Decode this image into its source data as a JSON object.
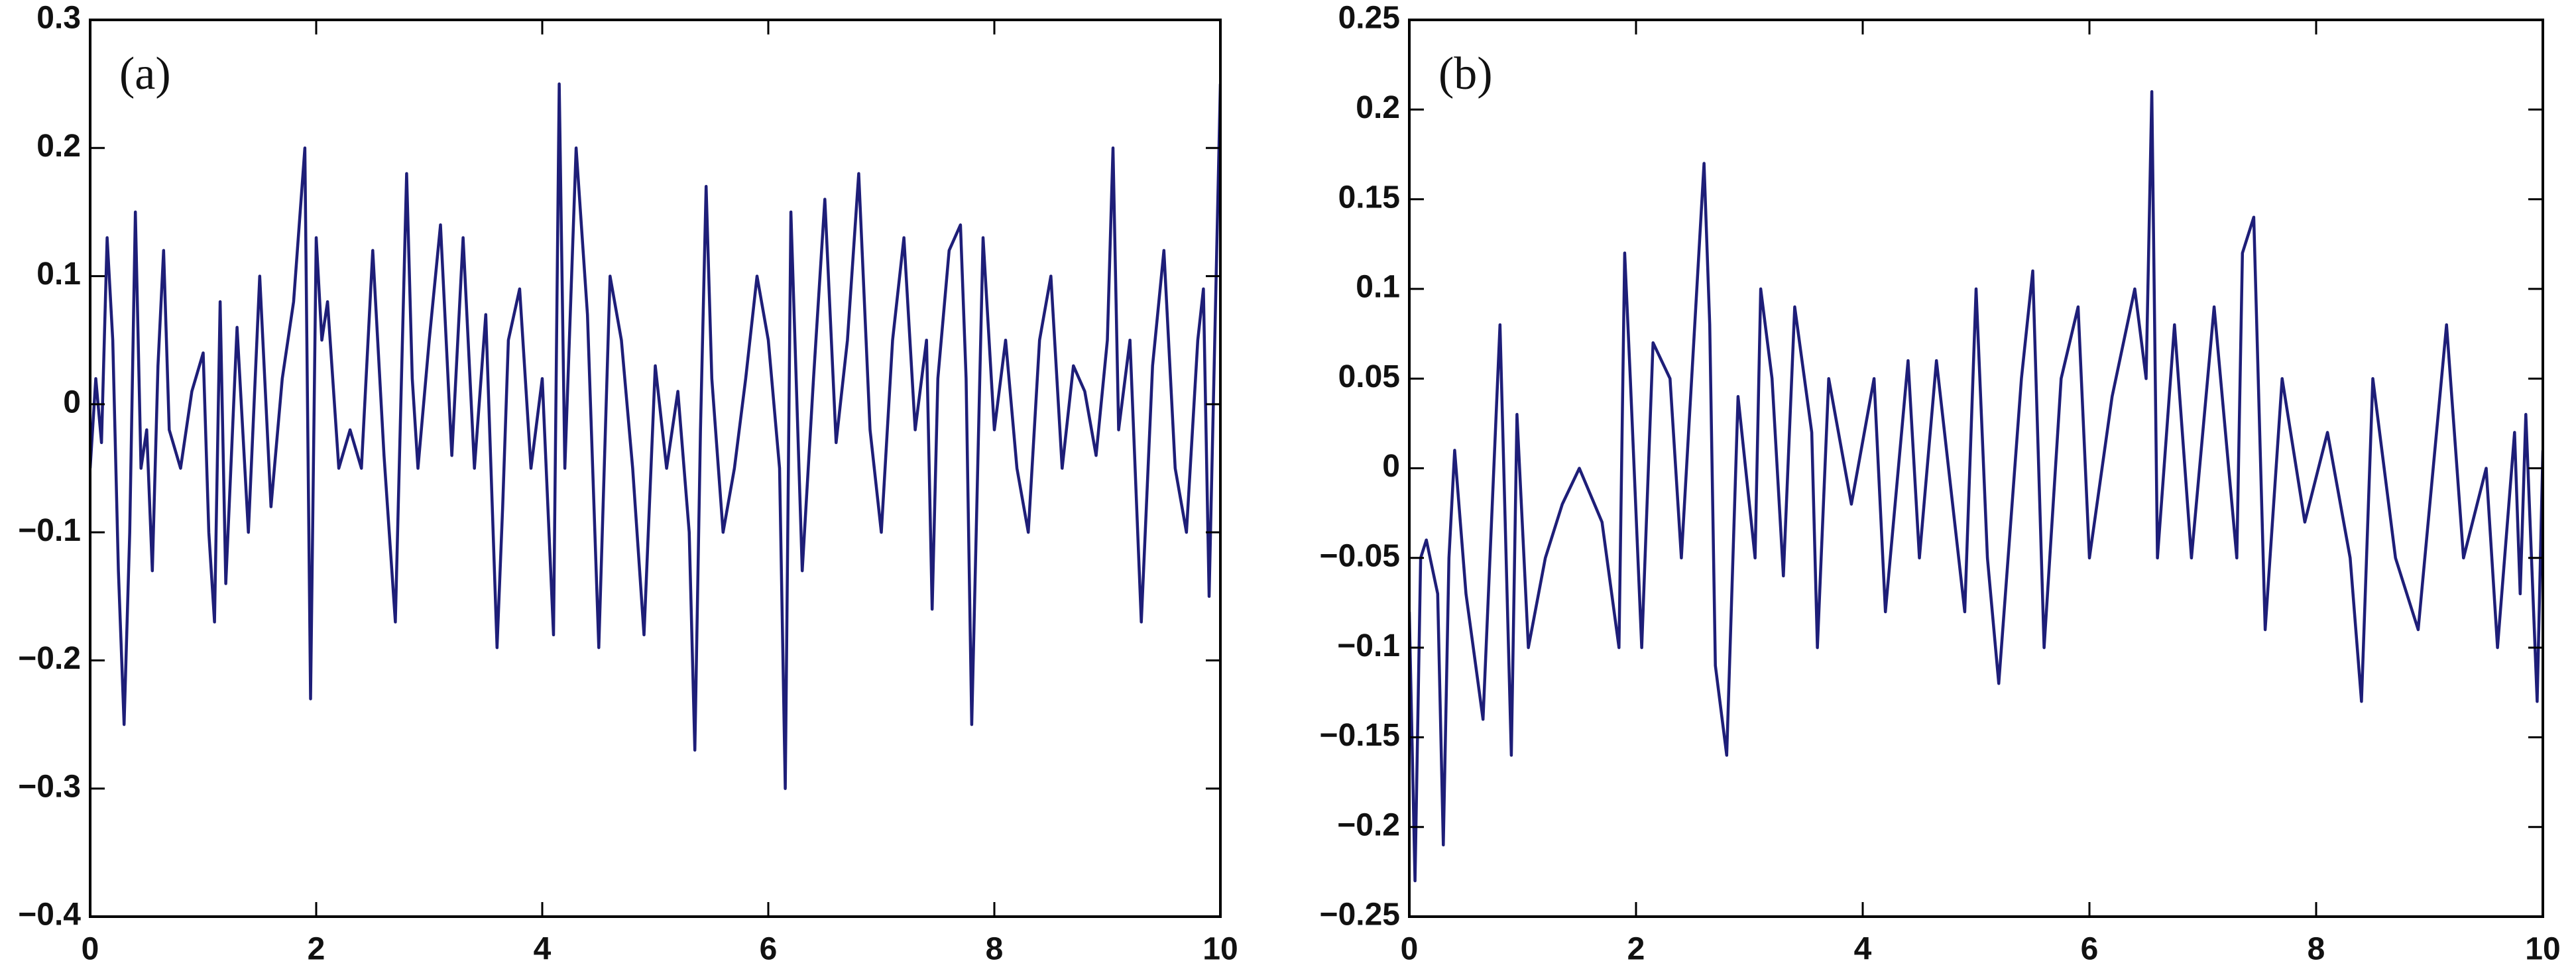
{
  "chart_data": [
    {
      "type": "line",
      "annotation": "(a)",
      "color": "#1e1e78",
      "xlim": [
        0,
        10
      ],
      "xticks": [
        0,
        2,
        4,
        6,
        8,
        10
      ],
      "ylim": [
        -0.4,
        0.3
      ],
      "yticks": [
        0.3,
        0.2,
        0.1,
        0,
        {
          "value": -0.1,
          "label": "−0.1"
        },
        {
          "value": -0.2,
          "label": "−0.2"
        },
        {
          "value": -0.3,
          "label": "−0.3"
        },
        {
          "value": -0.4,
          "label": "−0.4"
        }
      ],
      "x": [
        0,
        0.05,
        0.1,
        0.15,
        0.2,
        0.25,
        0.3,
        0.35,
        0.4,
        0.45,
        0.5,
        0.55,
        0.6,
        0.65,
        0.7,
        0.8,
        0.9,
        1.0,
        1.05,
        1.1,
        1.15,
        1.2,
        1.3,
        1.4,
        1.5,
        1.6,
        1.7,
        1.8,
        1.9,
        1.95,
        2.0,
        2.05,
        2.1,
        2.2,
        2.3,
        2.4,
        2.5,
        2.6,
        2.7,
        2.8,
        2.85,
        2.9,
        3.0,
        3.1,
        3.2,
        3.3,
        3.4,
        3.5,
        3.6,
        3.65,
        3.7,
        3.8,
        3.9,
        4.0,
        4.1,
        4.15,
        4.2,
        4.3,
        4.4,
        4.5,
        4.6,
        4.7,
        4.8,
        4.9,
        5.0,
        5.1,
        5.2,
        5.3,
        5.35,
        5.4,
        5.45,
        5.5,
        5.6,
        5.7,
        5.8,
        5.9,
        6.0,
        6.1,
        6.15,
        6.2,
        6.3,
        6.4,
        6.5,
        6.6,
        6.7,
        6.8,
        6.9,
        7.0,
        7.1,
        7.2,
        7.3,
        7.4,
        7.45,
        7.5,
        7.6,
        7.7,
        7.75,
        7.8,
        7.9,
        8.0,
        8.1,
        8.2,
        8.3,
        8.4,
        8.5,
        8.6,
        8.7,
        8.8,
        8.9,
        9.0,
        9.05,
        9.1,
        9.2,
        9.3,
        9.4,
        9.5,
        9.6,
        9.7,
        9.8,
        9.85,
        9.9,
        9.95,
        10
      ],
      "values": [
        -0.05,
        0.02,
        -0.03,
        0.13,
        0.05,
        -0.13,
        -0.25,
        -0.1,
        0.15,
        -0.05,
        -0.02,
        -0.13,
        0.03,
        0.12,
        -0.02,
        -0.05,
        0.01,
        0.04,
        -0.1,
        -0.17,
        0.08,
        -0.14,
        0.06,
        -0.1,
        0.1,
        -0.08,
        0.02,
        0.08,
        0.2,
        -0.23,
        0.13,
        0.05,
        0.08,
        -0.05,
        -0.02,
        -0.05,
        0.12,
        -0.04,
        -0.17,
        0.18,
        0.02,
        -0.05,
        0.05,
        0.14,
        -0.04,
        0.13,
        -0.05,
        0.07,
        -0.19,
        -0.08,
        0.05,
        0.09,
        -0.05,
        0.02,
        -0.18,
        0.25,
        -0.05,
        0.2,
        0.07,
        -0.19,
        0.1,
        0.05,
        -0.05,
        -0.18,
        0.03,
        -0.05,
        0.01,
        -0.1,
        -0.27,
        -0.02,
        0.17,
        0.02,
        -0.1,
        -0.05,
        0.02,
        0.1,
        0.05,
        -0.05,
        -0.3,
        0.15,
        -0.13,
        0.02,
        0.16,
        -0.03,
        0.05,
        0.18,
        -0.02,
        -0.1,
        0.05,
        0.13,
        -0.02,
        0.05,
        -0.16,
        0.02,
        0.12,
        0.14,
        0.02,
        -0.25,
        0.13,
        -0.02,
        0.05,
        -0.05,
        -0.1,
        0.05,
        0.1,
        -0.05,
        0.03,
        0.01,
        -0.04,
        0.05,
        0.2,
        -0.02,
        0.05,
        -0.17,
        0.03,
        0.12,
        -0.05,
        -0.1,
        0.05,
        0.09,
        -0.15,
        0.05,
        0.25
      ]
    },
    {
      "type": "line",
      "annotation": "(b)",
      "color": "#1e1e78",
      "xlim": [
        0,
        10
      ],
      "xticks": [
        0,
        2,
        4,
        6,
        8,
        10
      ],
      "ylim": [
        -0.25,
        0.25
      ],
      "yticks": [
        0.25,
        0.2,
        0.15,
        0.1,
        0.05,
        0,
        {
          "value": -0.05,
          "label": "−0.05"
        },
        {
          "value": -0.1,
          "label": "−0.1"
        },
        {
          "value": -0.15,
          "label": "−0.15"
        },
        {
          "value": -0.2,
          "label": "−0.2"
        },
        {
          "value": -0.25,
          "label": "−0.25"
        }
      ],
      "x": [
        0,
        0.05,
        0.1,
        0.15,
        0.25,
        0.3,
        0.35,
        0.4,
        0.5,
        0.65,
        0.8,
        0.9,
        0.95,
        1.05,
        1.2,
        1.35,
        1.5,
        1.7,
        1.85,
        1.9,
        1.95,
        2.05,
        2.15,
        2.3,
        2.4,
        2.6,
        2.65,
        2.7,
        2.8,
        2.9,
        3.05,
        3.1,
        3.2,
        3.3,
        3.4,
        3.55,
        3.6,
        3.7,
        3.9,
        4.1,
        4.2,
        4.4,
        4.5,
        4.65,
        4.9,
        5.0,
        5.1,
        5.2,
        5.4,
        5.5,
        5.6,
        5.75,
        5.9,
        6.0,
        6.2,
        6.4,
        6.5,
        6.55,
        6.6,
        6.75,
        6.9,
        7.1,
        7.2,
        7.3,
        7.35,
        7.45,
        7.55,
        7.7,
        7.9,
        8.1,
        8.3,
        8.4,
        8.5,
        8.7,
        8.9,
        9.15,
        9.3,
        9.5,
        9.6,
        9.75,
        9.8,
        9.85,
        9.95,
        10
      ],
      "values": [
        -0.08,
        -0.23,
        -0.05,
        -0.04,
        -0.07,
        -0.21,
        -0.05,
        0.01,
        -0.07,
        -0.14,
        0.08,
        -0.16,
        0.03,
        -0.1,
        -0.05,
        -0.02,
        0,
        -0.03,
        -0.1,
        0.12,
        0.05,
        -0.1,
        0.07,
        0.05,
        -0.05,
        0.17,
        0.08,
        -0.11,
        -0.16,
        0.04,
        -0.05,
        0.1,
        0.05,
        -0.06,
        0.09,
        0.02,
        -0.1,
        0.05,
        -0.02,
        0.05,
        -0.08,
        0.06,
        -0.05,
        0.06,
        -0.08,
        0.1,
        -0.05,
        -0.12,
        0.05,
        0.11,
        -0.1,
        0.05,
        0.09,
        -0.05,
        0.04,
        0.1,
        0.05,
        0.21,
        -0.05,
        0.08,
        -0.05,
        0.09,
        0.02,
        -0.05,
        0.12,
        0.14,
        -0.09,
        0.05,
        -0.03,
        0.02,
        -0.05,
        -0.13,
        0.05,
        -0.05,
        -0.09,
        0.08,
        -0.05,
        0,
        -0.1,
        0.02,
        -0.07,
        0.03,
        -0.13,
        0.01
      ]
    }
  ]
}
